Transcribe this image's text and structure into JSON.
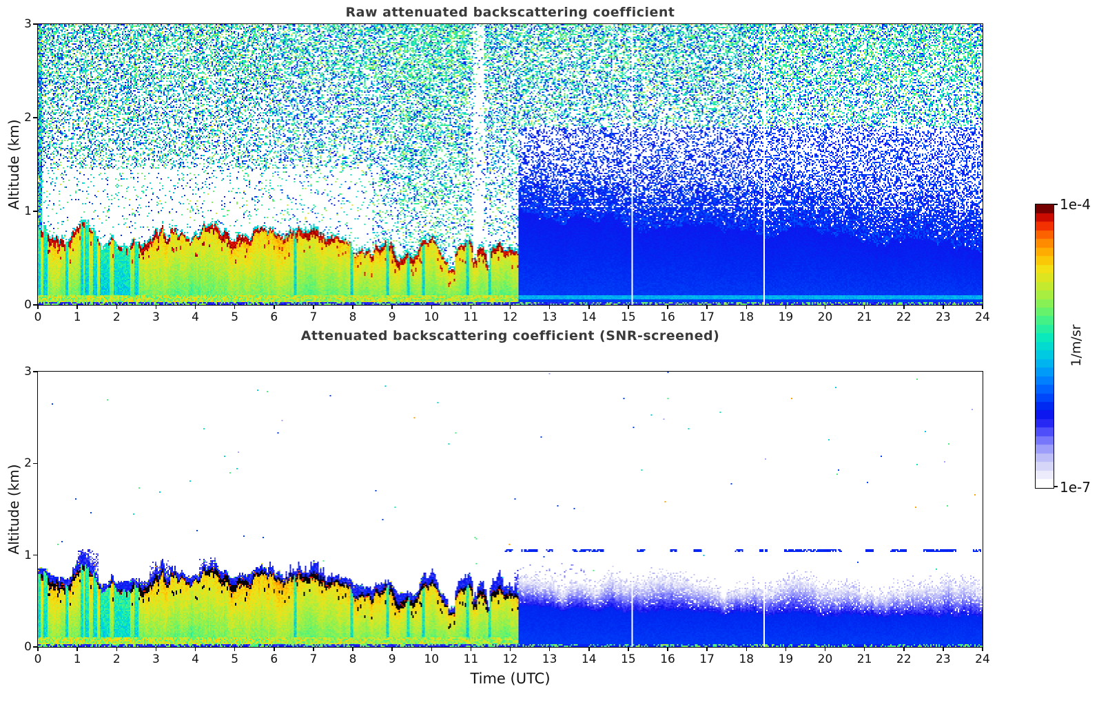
{
  "figure": {
    "background": "#ffffff"
  },
  "chart_data": {
    "type": "heatmap",
    "seed": 1234,
    "panels": [
      {
        "id": "raw",
        "title": "Raw attenuated backscattering coefficient"
      },
      {
        "id": "screened",
        "title": "Attenuated backscattering coefficient (SNR-screened)"
      }
    ],
    "x_axis": {
      "label": "Time (UTC)",
      "min": 0,
      "max": 24,
      "ticks": [
        0,
        1,
        2,
        3,
        4,
        5,
        6,
        7,
        8,
        9,
        10,
        11,
        12,
        13,
        14,
        15,
        16,
        17,
        18,
        19,
        20,
        21,
        22,
        23,
        24
      ]
    },
    "y_axis": {
      "label": "Altitude (km)",
      "min": 0,
      "max": 3,
      "ticks": [
        0,
        1,
        2,
        3
      ]
    },
    "colorbar": {
      "label": "1/m/sr",
      "max_label": "1e-4",
      "min_label": "1e-7",
      "scale": "log",
      "min": 1e-07,
      "max": 0.0001,
      "levels": 33,
      "stops": [
        [
          0.0,
          "#ffffff"
        ],
        [
          0.04,
          "#e6e6fa"
        ],
        [
          0.08,
          "#cbcbf8"
        ],
        [
          0.12,
          "#a4a4fa"
        ],
        [
          0.16,
          "#7373fc"
        ],
        [
          0.2,
          "#3e3efa"
        ],
        [
          0.24,
          "#1111ee"
        ],
        [
          0.28,
          "#0028f2"
        ],
        [
          0.33,
          "#0057ff"
        ],
        [
          0.38,
          "#0085ff"
        ],
        [
          0.43,
          "#00b0f2"
        ],
        [
          0.48,
          "#00d2de"
        ],
        [
          0.53,
          "#09e9bd"
        ],
        [
          0.58,
          "#35f193"
        ],
        [
          0.63,
          "#6cf366"
        ],
        [
          0.68,
          "#a0ef45"
        ],
        [
          0.73,
          "#cfe92a"
        ],
        [
          0.78,
          "#f2e015"
        ],
        [
          0.82,
          "#fdc303"
        ],
        [
          0.86,
          "#ff9d00"
        ],
        [
          0.9,
          "#ff6d00"
        ],
        [
          0.93,
          "#fa3900"
        ],
        [
          0.96,
          "#e11500"
        ],
        [
          0.98,
          "#b20000"
        ],
        [
          1.0,
          "#760000"
        ]
      ]
    },
    "aerosol_layer": {
      "t_utc": [
        0,
        1,
        2,
        3,
        4,
        5,
        6,
        7,
        8,
        9,
        10,
        11,
        12
      ],
      "top_km": [
        0.8,
        0.72,
        0.68,
        0.73,
        0.79,
        0.78,
        0.75,
        0.72,
        0.7,
        0.62,
        0.56,
        0.53,
        0.5
      ],
      "strong_band_thickness_km": 0.07,
      "ends_utc": 12.2
    },
    "raw_noise_blue_top_km": {
      "t_utc": [
        12,
        14,
        16,
        18,
        20,
        22,
        24
      ],
      "z_km": [
        0.95,
        0.88,
        0.82,
        0.78,
        0.72,
        0.68,
        0.64
      ]
    },
    "screened_solid_blue_top_km": {
      "t_utc": [
        12,
        14,
        16,
        18,
        20,
        22,
        24
      ],
      "z_km": [
        0.42,
        0.4,
        0.38,
        0.36,
        0.33,
        0.34,
        0.35
      ]
    },
    "screened_light_blue_top_km": {
      "t_utc": [
        12,
        14,
        16,
        18,
        20,
        22,
        24
      ],
      "z_km": [
        0.6,
        0.7,
        0.66,
        0.62,
        0.6,
        0.62,
        0.66
      ]
    },
    "artifact_line_km": 1.05,
    "data_gap_lines_utc": [
      15.1,
      18.45
    ],
    "quiet_noise_column_utc": [
      11.05,
      11.35
    ],
    "enhanced_noise_band_utc": [
      9.2,
      11.0
    ],
    "screened_blue_plumes": [
      {
        "t0": 1.0,
        "t1": 1.55,
        "top_km": 1.08
      },
      {
        "t0": 2.85,
        "t1": 3.35,
        "top_km": 0.95
      },
      {
        "t0": 4.1,
        "t1": 4.5,
        "top_km": 0.98
      },
      {
        "t0": 12.1,
        "t1": 13.9,
        "top_km": 0.92
      }
    ]
  }
}
